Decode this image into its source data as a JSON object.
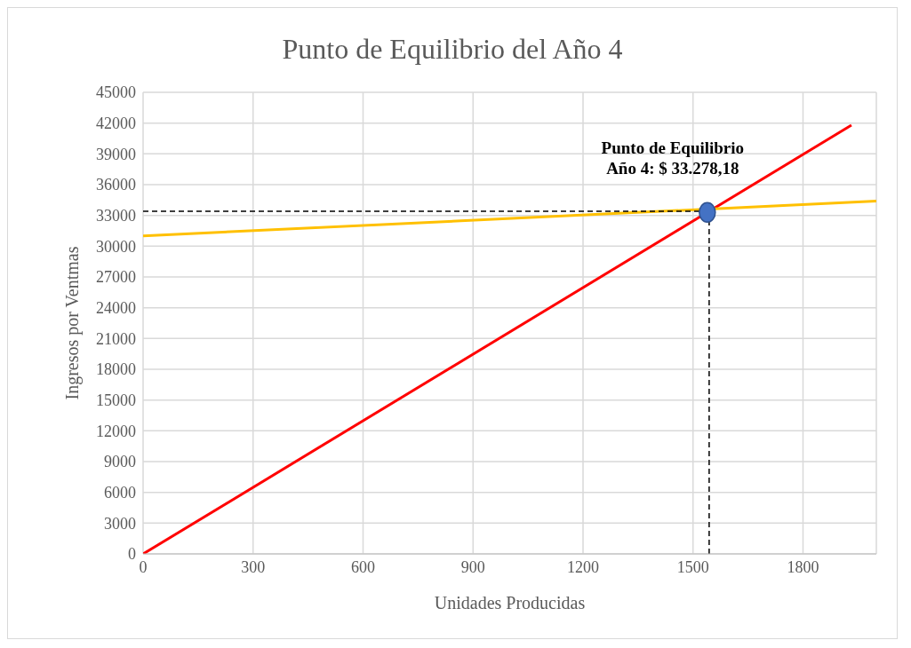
{
  "chart_data": {
    "type": "line",
    "title": "Punto de Equilibrio del Año 4",
    "xlabel": "Unidades Producidas",
    "ylabel": "Ingresos por Ventmas",
    "series": [
      {
        "color": "#ff0000",
        "x": [
          0,
          1932
        ],
        "values": [
          0,
          41800
        ]
      },
      {
        "color": "#ffc000",
        "x": [
          0,
          2000
        ],
        "values": [
          31000,
          34400
        ]
      },
      {
        "color": "#000000",
        "line_style": "dashed",
        "x": [
          0,
          1539
        ],
        "values": [
          33400,
          33400
        ]
      },
      {
        "color": "#000000",
        "line_style": "dashed",
        "x": [
          1544,
          1544
        ],
        "values": [
          33400,
          0
        ]
      },
      {
        "type": "scatter",
        "color": "#4472c4",
        "marker": "circle",
        "x": [
          1539
        ],
        "values": [
          33300
        ]
      }
    ],
    "annotations": [
      {
        "text": "Punto de Equilibrio Año 4: $ 33.278,18",
        "x": 1539,
        "y": 33278
      }
    ],
    "xlim": [
      0,
      2000
    ],
    "xticks": [
      0,
      300,
      600,
      900,
      1200,
      1500,
      1800
    ],
    "ylim": [
      0,
      45000
    ],
    "yticks": [
      0,
      3000,
      6000,
      9000,
      12000,
      15000,
      18000,
      21000,
      24000,
      27000,
      30000,
      33000,
      36000,
      39000,
      42000,
      45000
    ],
    "grid": true,
    "marker": "none",
    "line_style": "solid"
  }
}
